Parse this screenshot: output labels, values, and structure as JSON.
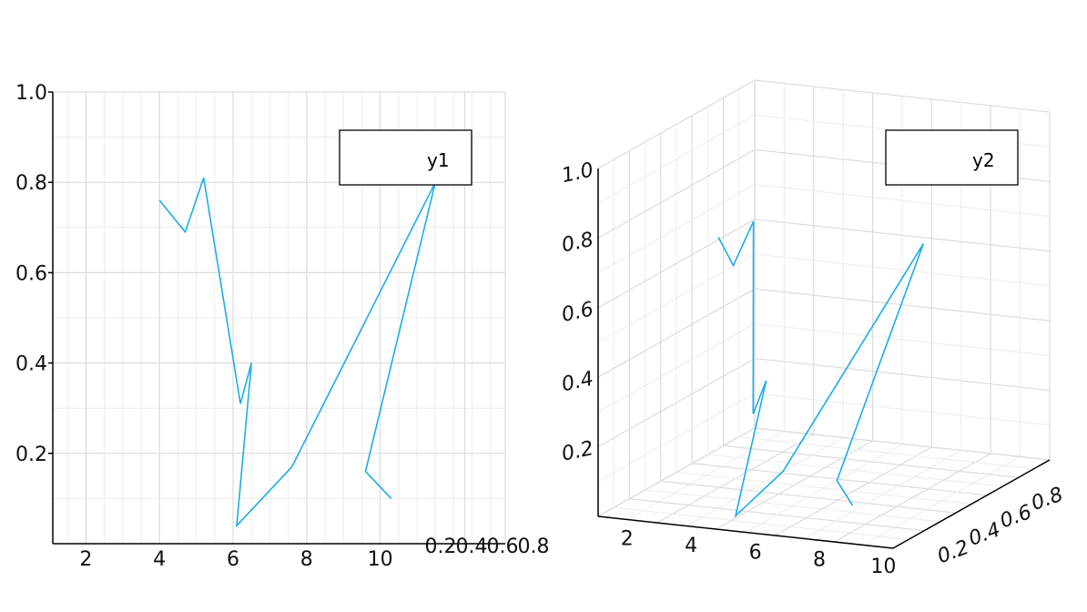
{
  "chart_data": [
    {
      "type": "line",
      "title": "",
      "xlabel": "",
      "ylabel": "",
      "x_ticks": [
        "2",
        "4",
        "6",
        "8",
        "10"
      ],
      "y_ticks": [
        "0.2",
        "0.4",
        "0.6",
        "0.8",
        "1.0"
      ],
      "xlim": [
        1.1,
        13.4
      ],
      "ylim": [
        0.0,
        1.0
      ],
      "extra_x_ticks": [
        "0.2",
        "0.4",
        "0.6",
        "0.8"
      ],
      "grid": true,
      "legend": "top-right",
      "series": [
        {
          "name": "y1",
          "color": "#1aaee8",
          "x": [
            4,
            4.7,
            5.2,
            6.2,
            6.5,
            6.1,
            7.6,
            11.5,
            9.6,
            10.3
          ],
          "y": [
            0.76,
            0.69,
            0.81,
            0.31,
            0.4,
            0.04,
            0.17,
            0.8,
            0.16,
            0.1
          ]
        }
      ]
    },
    {
      "type": "line",
      "projection": "3d",
      "title": "",
      "x_ticks": [
        "2",
        "4",
        "6",
        "8",
        "10"
      ],
      "y_ticks": [
        "0.2",
        "0.4",
        "0.6",
        "0.8"
      ],
      "z_ticks": [
        "0.2",
        "0.4",
        "0.6",
        "0.8",
        "1.0"
      ],
      "grid": true,
      "legend": "top-right",
      "series": [
        {
          "name": "y2",
          "color": "#1aaee8",
          "x": [
            4,
            4.7,
            5.2,
            6.2,
            6.5,
            6.1,
            7.6,
            11.5,
            9.6,
            10.3
          ],
          "y": [
            0.76,
            0.69,
            0.81,
            0.31,
            0.4,
            0.04,
            0.17,
            0.8,
            0.16,
            0.1
          ],
          "z": [
            0.76,
            0.69,
            0.81,
            0.31,
            0.4,
            0.04,
            0.17,
            0.8,
            0.16,
            0.1
          ]
        }
      ]
    }
  ]
}
